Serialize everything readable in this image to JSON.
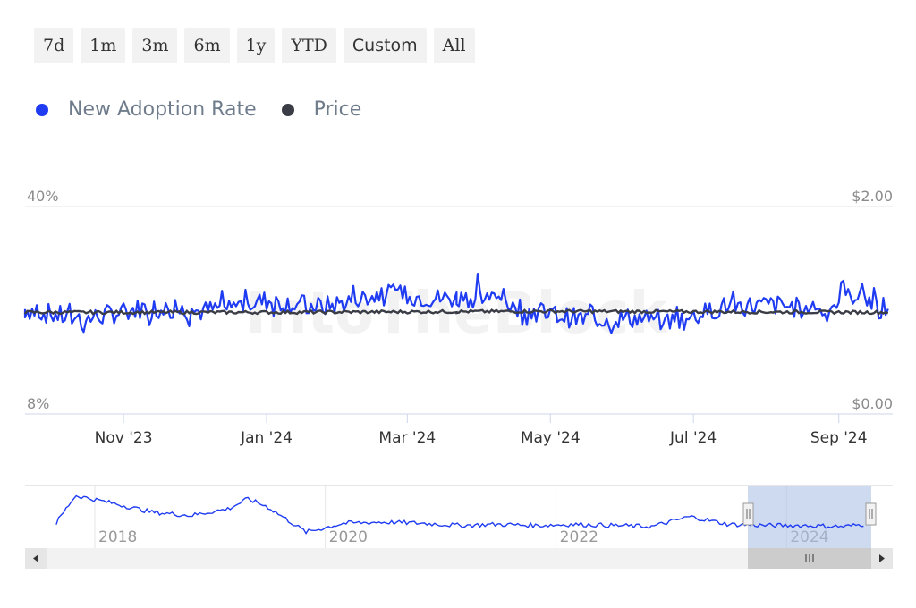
{
  "range_buttons": [
    "7d",
    "1m",
    "3m",
    "6m",
    "1y",
    "YTD",
    "Custom",
    "All"
  ],
  "legend": [
    {
      "label": "New Adoption Rate",
      "color": "#1f3cf2"
    },
    {
      "label": "Price",
      "color": "#3a3d45"
    }
  ],
  "watermark": "IntoTheBlock",
  "chart_data": {
    "type": "line",
    "y_left": {
      "min_label": "8%",
      "max_label": "40%",
      "range": [
        8,
        40
      ]
    },
    "y_right": {
      "min_label": "$0.00",
      "max_label": "$2.00",
      "range": [
        0,
        2
      ]
    },
    "x_ticks": [
      "Nov '23",
      "Jan '24",
      "Mar '24",
      "May '24",
      "Jul '24",
      "Sep '24"
    ],
    "series": [
      {
        "name": "New Adoption Rate",
        "color": "#1f3cf2",
        "x": [
          "2023-09-20",
          "2023-10-15",
          "2023-11-10",
          "2023-12-05",
          "2024-01-01",
          "2024-01-25",
          "2024-02-20",
          "2024-03-15",
          "2024-04-05",
          "2024-04-25",
          "2024-05-15",
          "2024-06-05",
          "2024-06-25",
          "2024-07-15",
          "2024-08-05",
          "2024-08-25",
          "2024-09-10",
          "2024-09-22"
        ],
        "y": [
          24.2,
          22.5,
          24.4,
          23.8,
          25.5,
          24.5,
          26.5,
          25.8,
          26.0,
          23.8,
          22.6,
          22.8,
          22.3,
          24.6,
          24.8,
          24.0,
          26.8,
          23.0
        ]
      },
      {
        "name": "Price",
        "color": "#3a3d45",
        "x": [
          "2023-09-20",
          "2024-01-01",
          "2024-05-01",
          "2024-09-22"
        ],
        "y": [
          0.98,
          0.98,
          0.99,
          0.98
        ]
      }
    ],
    "navigator": {
      "x_labels": [
        "2018",
        "2020",
        "2022",
        "2024"
      ],
      "x": [
        "2017-09",
        "2017-11",
        "2018-03",
        "2018-07",
        "2018-11",
        "2019-03",
        "2019-05",
        "2019-07",
        "2019-11",
        "2020-03",
        "2020-07",
        "2020-11",
        "2021-03",
        "2021-07",
        "2021-11",
        "2022-03",
        "2022-07",
        "2022-11",
        "2023-03",
        "2023-07",
        "2023-11",
        "2024-03",
        "2024-07",
        "2024-09"
      ],
      "y": [
        20,
        45,
        38,
        30,
        27,
        33,
        42,
        35,
        12,
        20,
        21,
        20,
        18,
        19,
        18,
        19,
        18,
        17,
        26,
        19,
        18,
        18,
        17,
        19
      ]
    }
  }
}
